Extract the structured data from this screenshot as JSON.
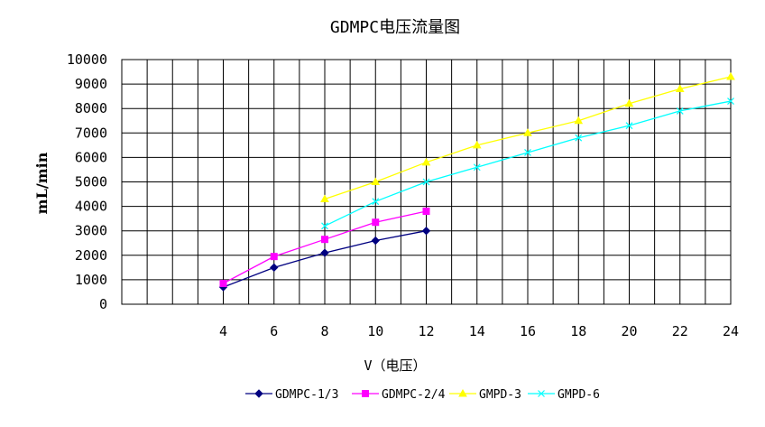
{
  "chart_data": {
    "type": "line",
    "title": "GDMPC电压流量图",
    "xlabel": "V（电压）",
    "ylabel": "mL/min",
    "xlim": [
      0,
      24
    ],
    "ylim": [
      0,
      10000
    ],
    "x_ticks": [
      "4",
      "6",
      "8",
      "10",
      "12",
      "14",
      "16",
      "18",
      "20",
      "22",
      "24"
    ],
    "y_ticks": [
      "0",
      "1000",
      "2000",
      "3000",
      "4000",
      "5000",
      "6000",
      "7000",
      "8000",
      "9000",
      "10000"
    ],
    "grid": true,
    "legend_position": "bottom",
    "series": [
      {
        "name": "GDMPC-1/3",
        "color": "#000080",
        "marker": "diamond",
        "x": [
          4,
          6,
          8,
          10,
          12
        ],
        "y": [
          700,
          1500,
          2100,
          2600,
          3000
        ]
      },
      {
        "name": "GDMPC-2/4",
        "color": "#ff00ff",
        "marker": "square",
        "x": [
          4,
          6,
          8,
          10,
          12
        ],
        "y": [
          850,
          1950,
          2650,
          3350,
          3800
        ]
      },
      {
        "name": "GMPD-3",
        "color": "#ffff00",
        "marker": "triangle",
        "x": [
          8,
          10,
          12,
          14,
          16,
          18,
          20,
          22,
          24
        ],
        "y": [
          4300,
          5000,
          5800,
          6500,
          7000,
          7500,
          8200,
          8800,
          9300
        ]
      },
      {
        "name": "GMPD-6",
        "color": "#00ffff",
        "marker": "x",
        "x": [
          8,
          10,
          12,
          14,
          16,
          18,
          20,
          22,
          24
        ],
        "y": [
          3200,
          4200,
          5000,
          5600,
          6200,
          6800,
          7300,
          7900,
          8300
        ]
      }
    ]
  }
}
